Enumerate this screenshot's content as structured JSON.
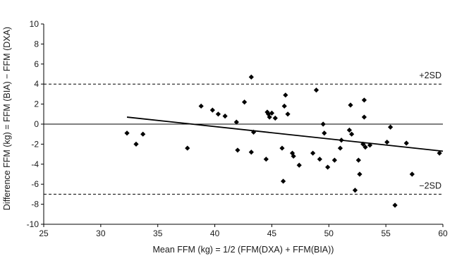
{
  "chart_data": {
    "type": "scatter",
    "xlabel": "Mean FFM (kg) = 1/2 (FFM(DXA) + FFM(BIA))",
    "ylabel": "Difference FFM (kg) = FFM (BIA) − FFM (DXA)",
    "xlim": [
      25,
      60
    ],
    "ylim": [
      -10,
      10
    ],
    "x_ticks": [
      25,
      30,
      35,
      40,
      45,
      50,
      55,
      60
    ],
    "y_ticks": [
      -10,
      -8,
      -6,
      -4,
      -2,
      0,
      2,
      4,
      6,
      8,
      10
    ],
    "grid": false,
    "reference_lines": [
      {
        "label": "+2SD",
        "y": 4.0,
        "style": "dashed"
      },
      {
        "label": "−2SD",
        "y": -7.0,
        "style": "dashed"
      }
    ],
    "zero_line": 0,
    "regression_line": {
      "x": [
        32.3,
        60
      ],
      "y": [
        0.7,
        -2.7
      ]
    },
    "points": [
      {
        "x": 32.3,
        "y": -0.9
      },
      {
        "x": 33.1,
        "y": -2.0
      },
      {
        "x": 33.7,
        "y": -1.0
      },
      {
        "x": 37.6,
        "y": -2.4
      },
      {
        "x": 38.8,
        "y": 1.8
      },
      {
        "x": 39.8,
        "y": 1.4
      },
      {
        "x": 40.3,
        "y": 1.0
      },
      {
        "x": 40.9,
        "y": 0.8
      },
      {
        "x": 41.9,
        "y": 0.2
      },
      {
        "x": 42.0,
        "y": -2.6
      },
      {
        "x": 42.6,
        "y": 2.2
      },
      {
        "x": 43.2,
        "y": 4.7
      },
      {
        "x": 43.2,
        "y": -2.8
      },
      {
        "x": 43.4,
        "y": -0.8
      },
      {
        "x": 44.5,
        "y": -3.5
      },
      {
        "x": 44.6,
        "y": 1.2
      },
      {
        "x": 44.7,
        "y": 1.0
      },
      {
        "x": 44.8,
        "y": 0.7
      },
      {
        "x": 45.0,
        "y": 1.1
      },
      {
        "x": 45.3,
        "y": 0.6
      },
      {
        "x": 45.9,
        "y": -2.4
      },
      {
        "x": 46.0,
        "y": -5.7
      },
      {
        "x": 46.1,
        "y": 1.8
      },
      {
        "x": 46.2,
        "y": 2.9
      },
      {
        "x": 46.4,
        "y": 1.0
      },
      {
        "x": 46.8,
        "y": -2.9
      },
      {
        "x": 46.9,
        "y": -3.2
      },
      {
        "x": 47.4,
        "y": -4.1
      },
      {
        "x": 48.6,
        "y": -2.9
      },
      {
        "x": 48.9,
        "y": 3.4
      },
      {
        "x": 49.2,
        "y": -3.5
      },
      {
        "x": 49.5,
        "y": 0.0
      },
      {
        "x": 49.6,
        "y": -0.9
      },
      {
        "x": 49.9,
        "y": -4.3
      },
      {
        "x": 50.5,
        "y": -3.6
      },
      {
        "x": 51.0,
        "y": -2.4
      },
      {
        "x": 51.1,
        "y": -1.6
      },
      {
        "x": 51.8,
        "y": -0.6
      },
      {
        "x": 51.9,
        "y": 1.9
      },
      {
        "x": 52.0,
        "y": -1.0
      },
      {
        "x": 52.3,
        "y": -6.6
      },
      {
        "x": 52.6,
        "y": -3.6
      },
      {
        "x": 52.7,
        "y": -5.0
      },
      {
        "x": 53.0,
        "y": -2.0
      },
      {
        "x": 53.1,
        "y": 2.4
      },
      {
        "x": 53.1,
        "y": 0.7
      },
      {
        "x": 53.2,
        "y": -2.3
      },
      {
        "x": 53.6,
        "y": -2.1
      },
      {
        "x": 55.1,
        "y": -1.8
      },
      {
        "x": 55.4,
        "y": -0.3
      },
      {
        "x": 55.8,
        "y": -8.1
      },
      {
        "x": 56.8,
        "y": -1.9
      },
      {
        "x": 57.3,
        "y": -5.0
      },
      {
        "x": 59.7,
        "y": -2.9
      }
    ]
  }
}
